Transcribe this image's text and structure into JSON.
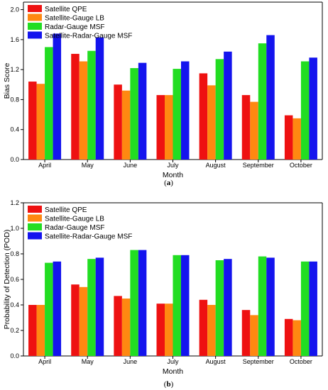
{
  "colors": {
    "Satellite QPE": "#ee1111",
    "Satellite-Gauge LB": "#ff8811",
    "Radar-Gauge MSF": "#22dd22",
    "Satellite-Radar-Gauge MSF": "#1414ee"
  },
  "chart_data": [
    {
      "type": "bar",
      "caption": "(a)",
      "caption_letter": "a",
      "xlabel": "Month",
      "ylabel": "Bias Score",
      "ylim": [
        0,
        2.1
      ],
      "yticks": [
        "0.0",
        "0.4",
        "0.8",
        "1.2",
        "1.6",
        "2.0"
      ],
      "ytick_values": [
        0,
        0.4,
        0.8,
        1.2,
        1.6,
        2.0
      ],
      "grid": false,
      "legend_position": "top-left",
      "categories": [
        "April",
        "May",
        "June",
        "July",
        "August",
        "September",
        "October"
      ],
      "series": [
        {
          "name": "Satellite QPE",
          "values": [
            1.04,
            1.41,
            1.0,
            0.86,
            1.15,
            0.86,
            0.59
          ]
        },
        {
          "name": "Satellite-Gauge LB",
          "values": [
            1.01,
            1.31,
            0.92,
            0.86,
            0.99,
            0.77,
            0.55
          ]
        },
        {
          "name": "Radar-Gauge MSF",
          "values": [
            1.5,
            1.45,
            1.22,
            1.21,
            1.34,
            1.55,
            1.31
          ]
        },
        {
          "name": "Satellite-Radar-Gauge MSF",
          "values": [
            1.68,
            1.63,
            1.29,
            1.31,
            1.44,
            1.66,
            1.36
          ]
        }
      ]
    },
    {
      "type": "bar",
      "caption": "(b)",
      "caption_letter": "b",
      "xlabel": "Month",
      "ylabel": "Probability of Detection (POD)",
      "ylim": [
        0,
        1.2
      ],
      "yticks": [
        "0.0",
        "0.2",
        "0.4",
        "0.6",
        "0.8",
        "1.0",
        "1.2"
      ],
      "ytick_values": [
        0,
        0.2,
        0.4,
        0.6,
        0.8,
        1.0,
        1.2
      ],
      "grid": false,
      "legend_position": "top-left",
      "categories": [
        "April",
        "May",
        "June",
        "July",
        "August",
        "September",
        "October"
      ],
      "series": [
        {
          "name": "Satellite QPE",
          "values": [
            0.4,
            0.56,
            0.47,
            0.41,
            0.44,
            0.36,
            0.29
          ]
        },
        {
          "name": "Satellite-Gauge LB",
          "values": [
            0.4,
            0.54,
            0.45,
            0.41,
            0.4,
            0.32,
            0.28
          ]
        },
        {
          "name": "Radar-Gauge MSF",
          "values": [
            0.73,
            0.76,
            0.83,
            0.79,
            0.75,
            0.78,
            0.74
          ]
        },
        {
          "name": "Satellite-Radar-Gauge MSF",
          "values": [
            0.74,
            0.77,
            0.83,
            0.79,
            0.76,
            0.77,
            0.74
          ]
        }
      ]
    }
  ]
}
